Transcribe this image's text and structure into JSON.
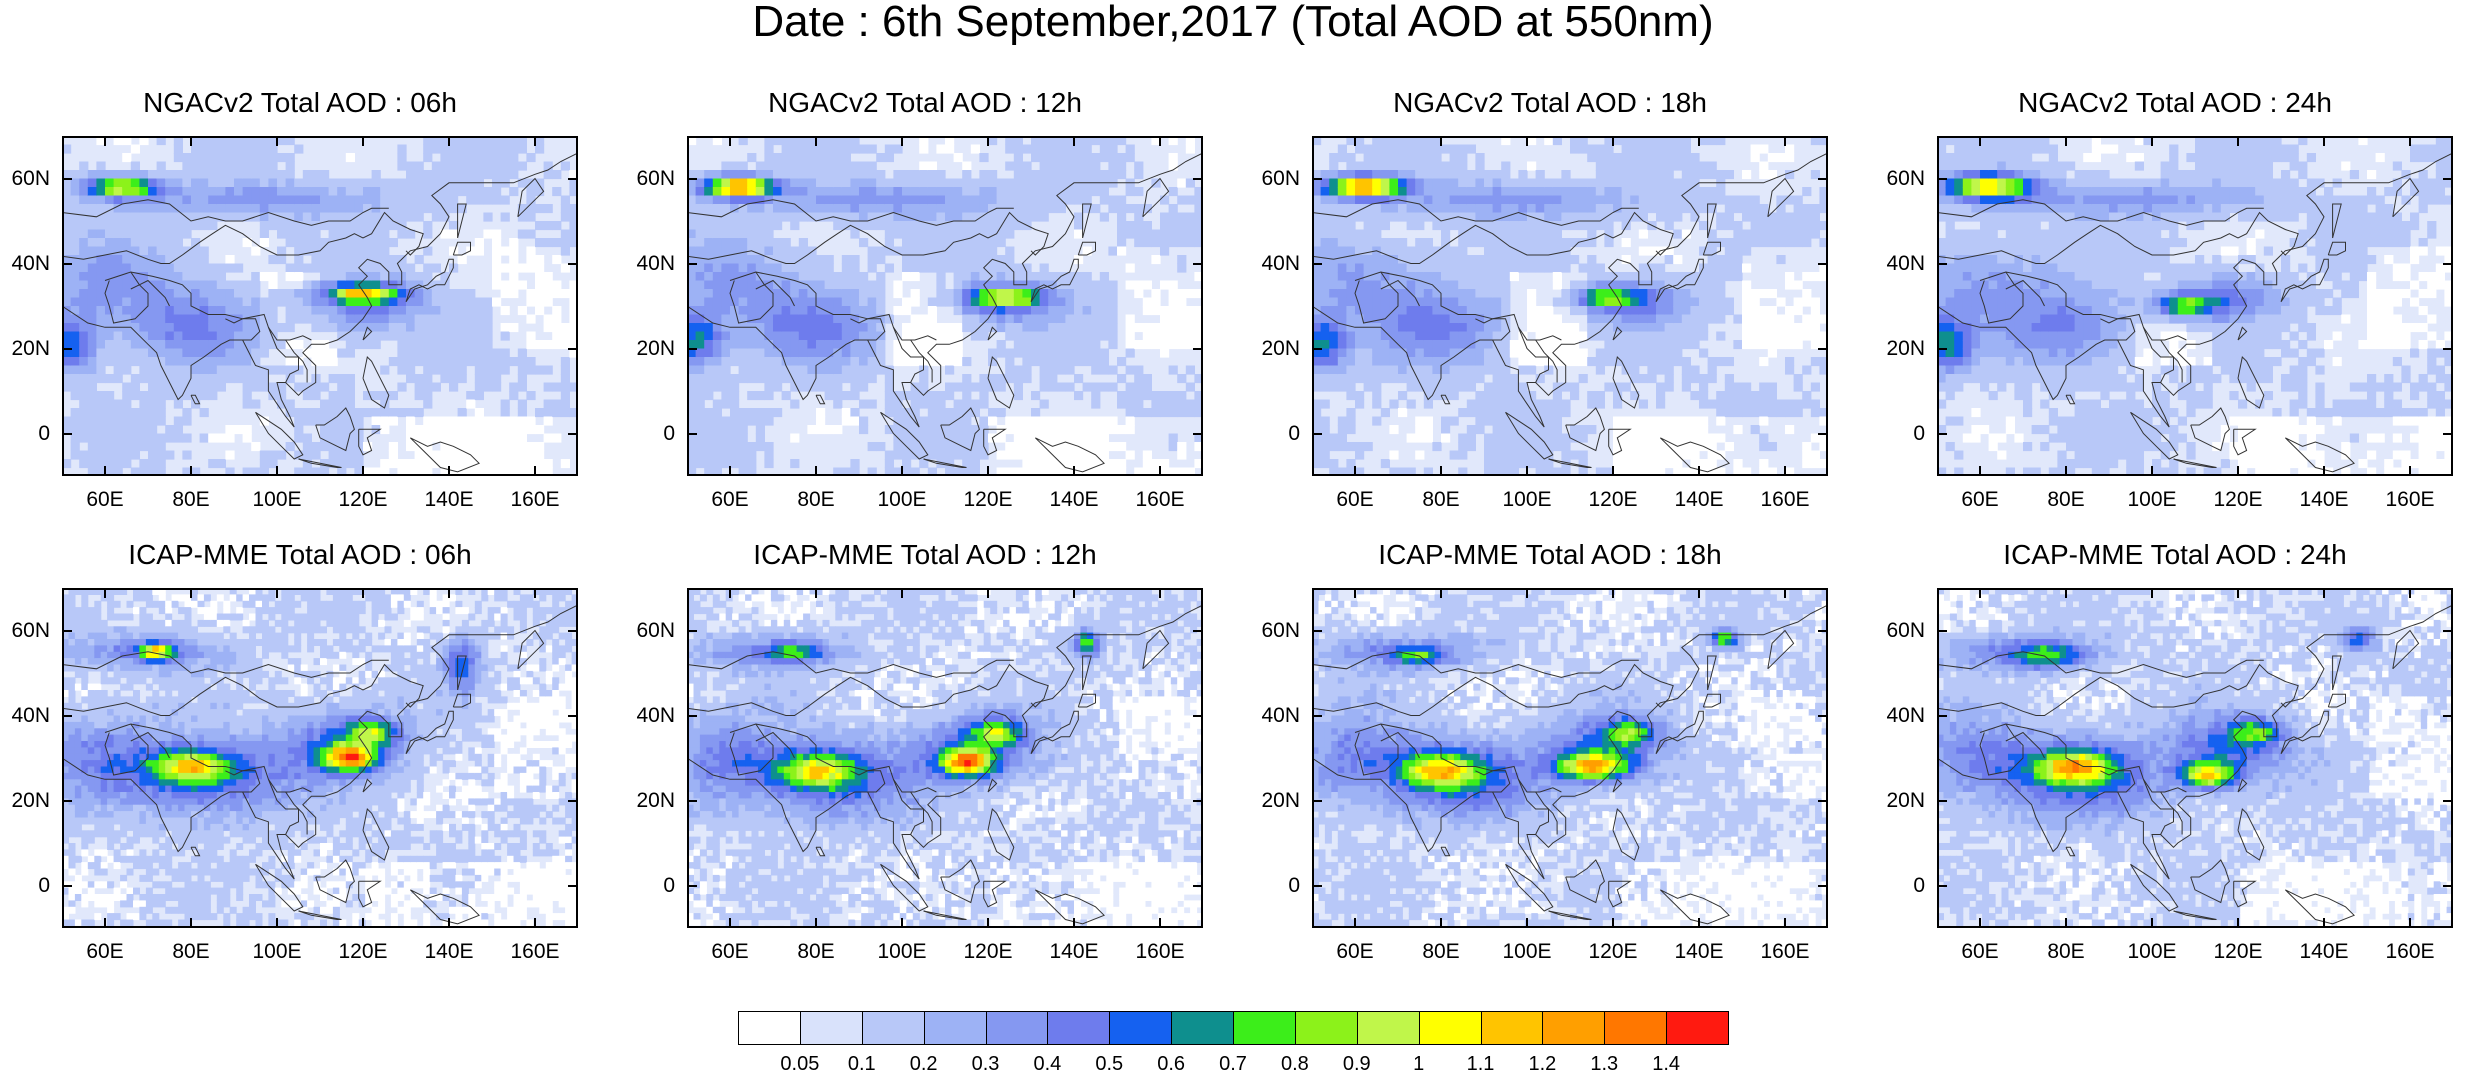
{
  "title": "Date : 6th September,2017 (Total AOD at 550nm)",
  "panels": [
    {
      "title": "NGACv2 Total AOD : 06h",
      "model": "NGACv2",
      "hour": "06h"
    },
    {
      "title": "NGACv2 Total AOD : 12h",
      "model": "NGACv2",
      "hour": "12h"
    },
    {
      "title": "NGACv2 Total AOD : 18h",
      "model": "NGACv2",
      "hour": "18h"
    },
    {
      "title": "NGACv2 Total AOD : 24h",
      "model": "NGACv2",
      "hour": "24h"
    },
    {
      "title": "ICAP-MME Total AOD : 06h",
      "model": "ICAP-MME",
      "hour": "06h"
    },
    {
      "title": "ICAP-MME Total AOD : 12h",
      "model": "ICAP-MME",
      "hour": "12h"
    },
    {
      "title": "ICAP-MME Total AOD : 18h",
      "model": "ICAP-MME",
      "hour": "18h"
    },
    {
      "title": "ICAP-MME Total AOD : 24h",
      "model": "ICAP-MME",
      "hour": "24h"
    }
  ],
  "map_extent": {
    "lon_min": 50,
    "lon_max": 170,
    "lat_min": -10,
    "lat_max": 70
  },
  "lat_ticks": [
    {
      "value": 60,
      "label": "60N"
    },
    {
      "value": 40,
      "label": "40N"
    },
    {
      "value": 20,
      "label": "20N"
    },
    {
      "value": 0,
      "label": "0"
    }
  ],
  "lon_ticks": [
    {
      "value": 60,
      "label": "60E"
    },
    {
      "value": 80,
      "label": "80E"
    },
    {
      "value": 100,
      "label": "100E"
    },
    {
      "value": 120,
      "label": "120E"
    },
    {
      "value": 140,
      "label": "140E"
    },
    {
      "value": 160,
      "label": "160E"
    }
  ],
  "colorbar": {
    "labels": [
      "0.05",
      "0.1",
      "0.2",
      "0.3",
      "0.4",
      "0.5",
      "0.6",
      "0.7",
      "0.8",
      "0.9",
      "1",
      "1.1",
      "1.2",
      "1.3",
      "1.4"
    ],
    "colors": [
      "#ffffff",
      "#d9e2fb",
      "#b8c8f8",
      "#9db2f5",
      "#8598f1",
      "#6e7ced",
      "#1561f0",
      "#0e8f8e",
      "#3cee1a",
      "#8cf21a",
      "#c0f64a",
      "#ffff00",
      "#ffc400",
      "#ff9f00",
      "#ff7700",
      "#ff1a10"
    ]
  }
}
